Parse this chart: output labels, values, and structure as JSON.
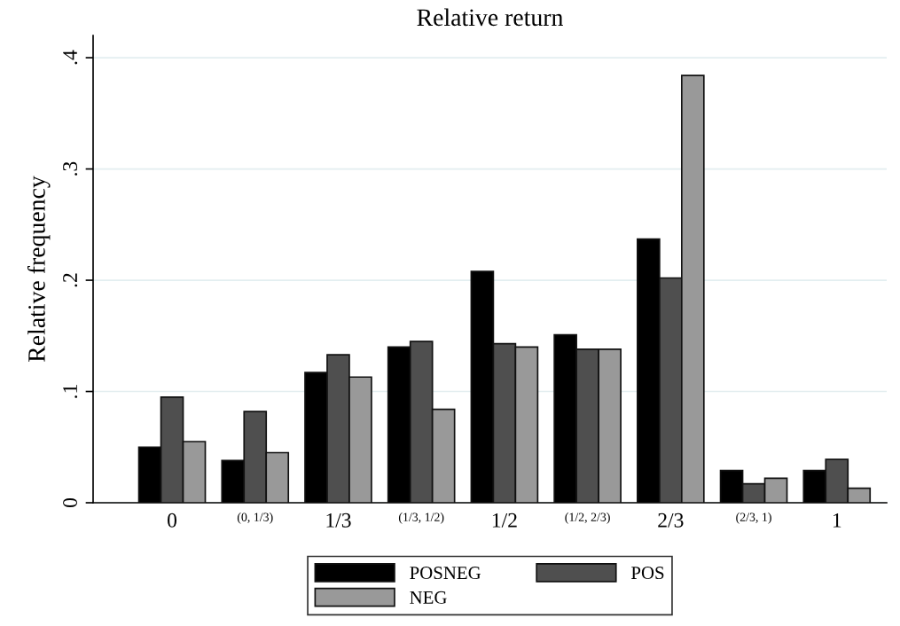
{
  "chart_data": {
    "type": "bar",
    "title": "Relative return",
    "ylabel": "Relative frequency",
    "categories": [
      "0",
      "(0, 1/3)",
      "1/3",
      "(1/3, 1/2)",
      "1/2",
      "(1/2, 2/3)",
      "2/3",
      "(2/3, 1)",
      "1"
    ],
    "series": [
      {
        "name": "POSNEG",
        "color": "#000000",
        "values": [
          0.05,
          0.038,
          0.117,
          0.14,
          0.208,
          0.151,
          0.237,
          0.029,
          0.029
        ]
      },
      {
        "name": "POS",
        "color": "#4f4f4f",
        "values": [
          0.095,
          0.082,
          0.133,
          0.145,
          0.143,
          0.138,
          0.202,
          0.017,
          0.039
        ]
      },
      {
        "name": "NEG",
        "color": "#999999",
        "values": [
          0.055,
          0.045,
          0.113,
          0.084,
          0.14,
          0.138,
          0.384,
          0.022,
          0.013
        ]
      }
    ],
    "ylim": [
      0,
      0.42
    ],
    "yticks": [
      {
        "value": 0,
        "label": "0"
      },
      {
        "value": 0.1,
        "label": ".1"
      },
      {
        "value": 0.2,
        "label": ".2"
      },
      {
        "value": 0.3,
        "label": ".3"
      },
      {
        "value": 0.4,
        "label": ".4"
      }
    ],
    "grid": "y",
    "legend": "bottom"
  }
}
